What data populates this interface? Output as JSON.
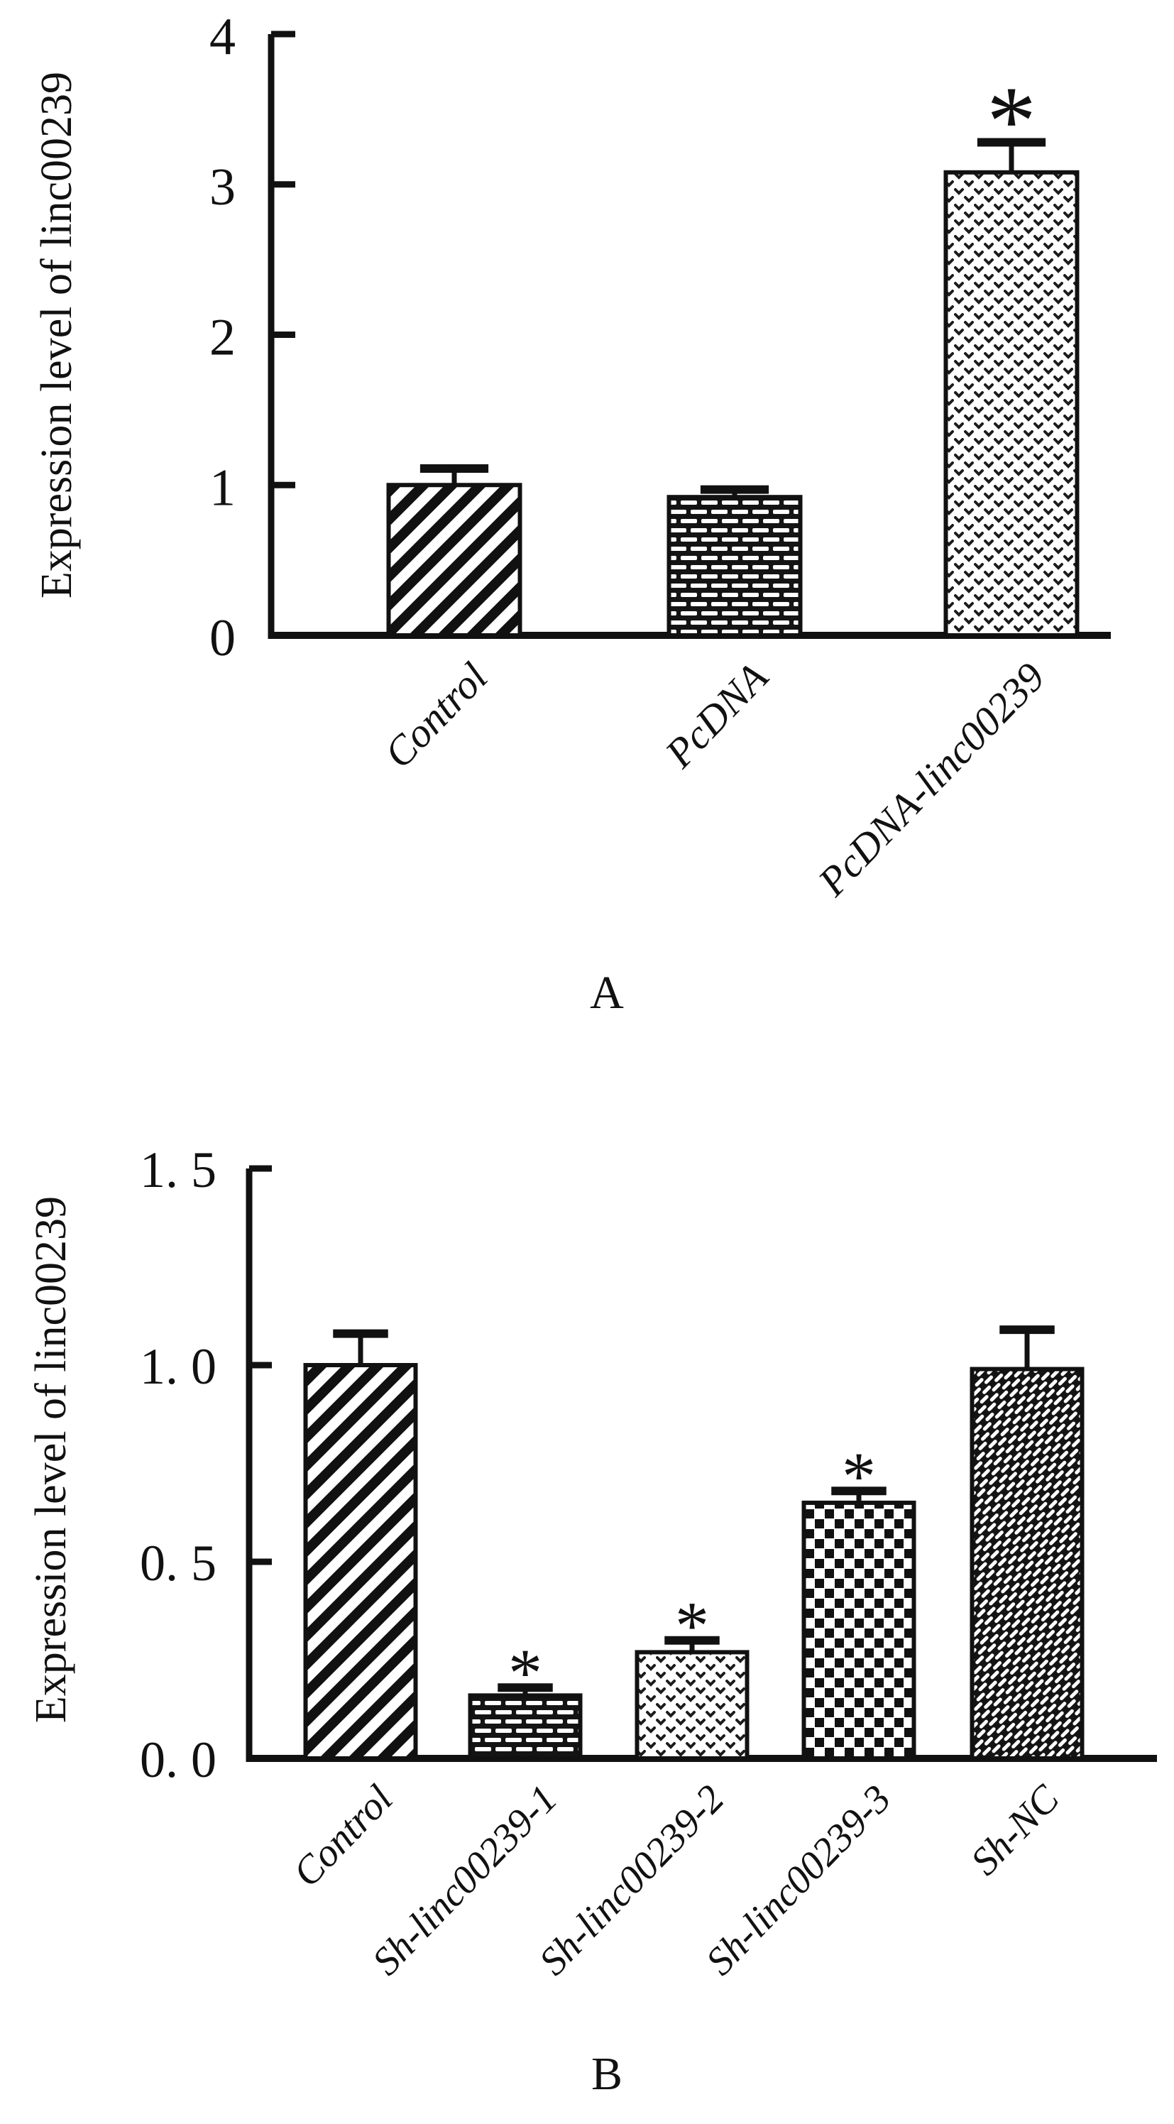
{
  "styles": {
    "ink": "#111111",
    "paper": "#ffffff"
  },
  "chart_data": [
    {
      "type": "bar",
      "panel_label": "A",
      "title": "",
      "xlabel": "",
      "ylabel": "Expression level of linc00239",
      "ylim": [
        0,
        4
      ],
      "grid": false,
      "legend_position": "none",
      "yticks": [
        {
          "value": 0,
          "label": "0"
        },
        {
          "value": 1,
          "label": "1"
        },
        {
          "value": 2,
          "label": "2"
        },
        {
          "value": 3,
          "label": "3"
        },
        {
          "value": 4,
          "label": "4"
        }
      ],
      "categories": [
        "Control",
        "PcDNA",
        "PcDNA-linc00239"
      ],
      "values": [
        1.0,
        0.92,
        3.08
      ],
      "errors": [
        0.11,
        0.05,
        0.2
      ],
      "significance": [
        "",
        "",
        "*"
      ],
      "patterns": [
        "diagonal-stripes",
        "bricks",
        "chevrons"
      ]
    },
    {
      "type": "bar",
      "panel_label": "B",
      "title": "",
      "xlabel": "",
      "ylabel": "Expression level of linc00239",
      "ylim": [
        0,
        1.5
      ],
      "grid": false,
      "legend_position": "none",
      "yticks": [
        {
          "value": 0,
          "label": "0. 0"
        },
        {
          "value": 0.5,
          "label": "0. 5"
        },
        {
          "value": 1.0,
          "label": "1. 0"
        },
        {
          "value": 1.5,
          "label": "1. 5"
        }
      ],
      "categories": [
        "Control",
        "Sh-linc00239-1",
        "Sh-linc00239-2",
        "Sh-linc00239-3",
        "Sh-NC"
      ],
      "values": [
        1.0,
        0.16,
        0.27,
        0.65,
        0.99
      ],
      "errors": [
        0.08,
        0.02,
        0.03,
        0.03,
        0.1
      ],
      "significance": [
        "",
        "*",
        "*",
        "*",
        ""
      ],
      "patterns": [
        "diagonal-stripes",
        "bricks",
        "chevrons",
        "checkerboard",
        "diagonal-weave"
      ]
    }
  ]
}
